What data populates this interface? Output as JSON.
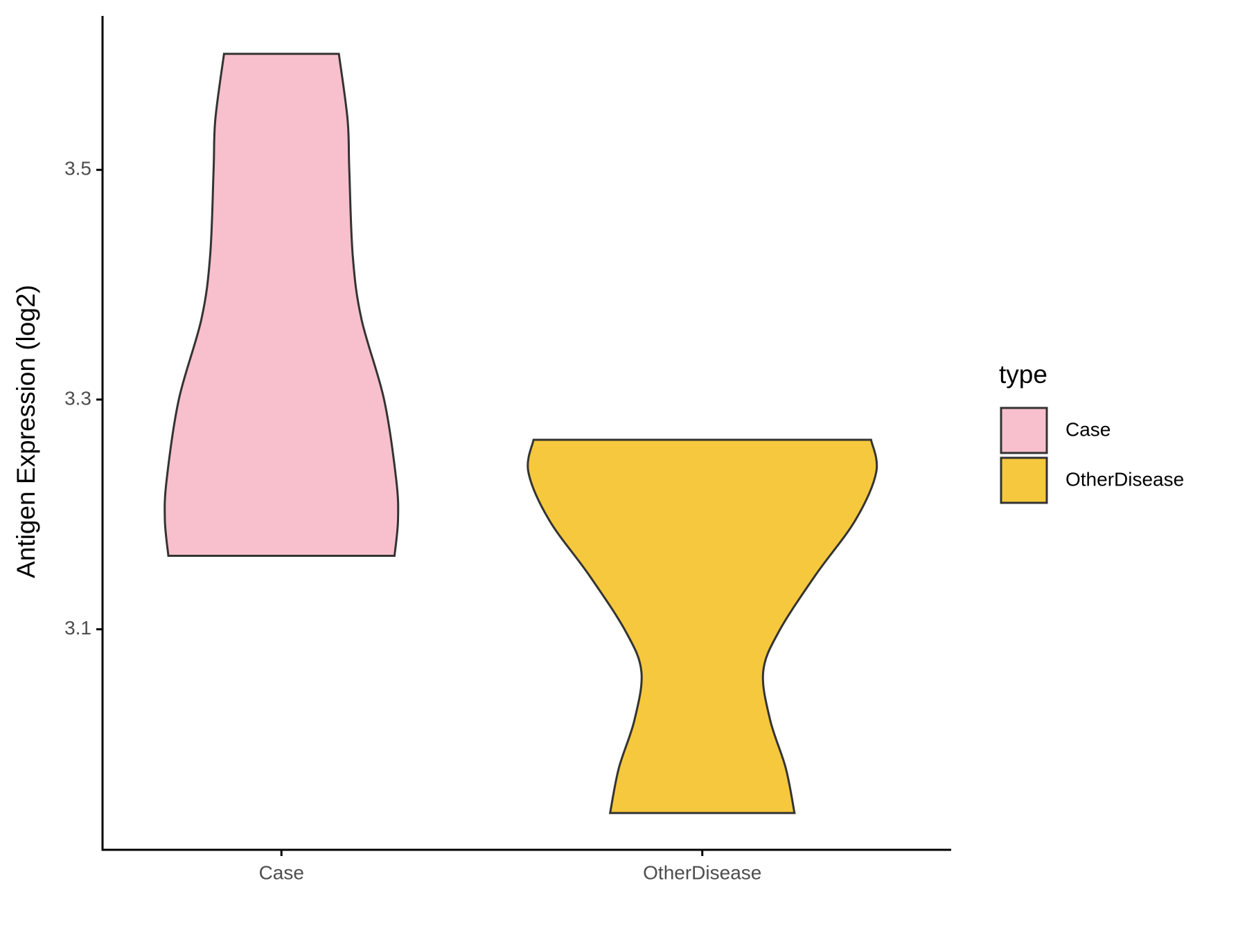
{
  "chart_data": {
    "type": "violin",
    "y_label": "Antigen Expression (log2)",
    "categories": [
      "Case",
      "OtherDisease"
    ],
    "legend_title": "type",
    "legend": "right",
    "ylim": [
      2.908,
      3.634
    ],
    "yticks": [
      3.1,
      3.3,
      3.5
    ],
    "series": [
      {
        "name": "Case",
        "color": "#f7c0cc",
        "y": [
          3.601,
          3.544,
          3.5,
          3.425,
          3.37,
          3.3,
          3.23,
          3.195,
          3.164
        ],
        "density": [
          0.33,
          0.38,
          0.39,
          0.41,
          0.46,
          0.59,
          0.66,
          0.67,
          0.65
        ]
      },
      {
        "name": "OtherDisease",
        "color": "#f5c83e",
        "y": [
          3.265,
          3.237,
          3.195,
          3.147,
          3.098,
          3.063,
          3.021,
          2.979,
          2.94
        ],
        "density": [
          0.97,
          1.0,
          0.88,
          0.65,
          0.44,
          0.35,
          0.39,
          0.48,
          0.53
        ]
      }
    ]
  }
}
